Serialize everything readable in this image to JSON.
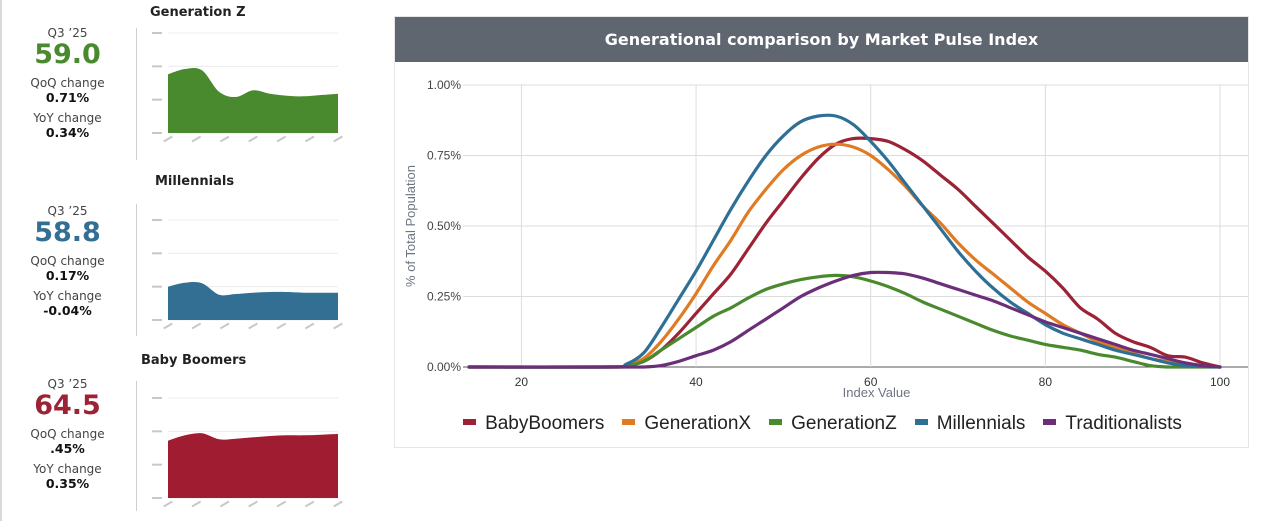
{
  "panels": [
    {
      "title": "Generation Z",
      "period": "Q3 ’25",
      "value": "59.0",
      "qoq_label": "QoQ change",
      "qoq_value": "0.71%",
      "yoy_label": "YoY change",
      "yoy_value": "0.34%",
      "color": "#4a8a2f",
      "ylim": [
        55,
        70
      ],
      "series": [
        63.8,
        64.6,
        64.4,
        61.2,
        60.4,
        61.4,
        60.9,
        60.6,
        60.5,
        60.7,
        60.9
      ]
    },
    {
      "title": "Millennials",
      "period": "Q3 ’25",
      "value": "58.8",
      "qoq_label": "QoQ change",
      "qoq_value": "0.17%",
      "yoy_label": "YoY change",
      "yoy_value": "-0.04%",
      "color": "#326f93",
      "ylim": [
        55,
        70
      ],
      "series": [
        60.0,
        60.6,
        60.5,
        58.8,
        58.9,
        59.1,
        59.2,
        59.2,
        59.1,
        59.1,
        59.1
      ]
    },
    {
      "title": "Baby Boomers",
      "period": "Q3 ’25",
      "value": "64.5",
      "qoq_label": "QoQ change",
      "qoq_value": ".45%",
      "yoy_label": "YoY change",
      "yoy_value": "0.35%",
      "color": "#a01c30",
      "ylim": [
        55,
        70
      ],
      "series": [
        63.6,
        64.4,
        64.7,
        63.8,
        63.9,
        64.1,
        64.3,
        64.4,
        64.4,
        64.5,
        64.6
      ]
    }
  ],
  "chart_data": {
    "type": "line",
    "title": "Generational comparison by Market Pulse Index",
    "xlabel": "Index Value",
    "ylabel": "% of Total Population",
    "xlim": [
      14,
      100
    ],
    "ylim": [
      0,
      1.0
    ],
    "xticks": [
      "20",
      "40",
      "60",
      "80",
      "100"
    ],
    "xtick_values": [
      20,
      40,
      60,
      80,
      100
    ],
    "yticks": [
      "0.00%",
      "0.25%",
      "0.50%",
      "0.75%",
      "1.00%"
    ],
    "ytick_values": [
      0,
      0.25,
      0.5,
      0.75,
      1.0
    ],
    "grid": true,
    "legend_position": "bottom",
    "x": [
      14,
      30,
      32,
      34,
      36,
      38,
      40,
      42,
      44,
      46,
      48,
      50,
      52,
      54,
      56,
      58,
      60,
      62,
      64,
      66,
      68,
      70,
      72,
      74,
      76,
      78,
      80,
      82,
      84,
      86,
      88,
      90,
      92,
      94,
      96,
      98,
      100
    ],
    "series": [
      {
        "name": "BabyBoomers",
        "color": "#9b2335",
        "values": [
          0,
          0,
          0.005,
          0.02,
          0.06,
          0.12,
          0.19,
          0.26,
          0.33,
          0.42,
          0.51,
          0.59,
          0.67,
          0.74,
          0.79,
          0.81,
          0.81,
          0.8,
          0.77,
          0.73,
          0.68,
          0.63,
          0.57,
          0.51,
          0.45,
          0.39,
          0.34,
          0.28,
          0.21,
          0.17,
          0.12,
          0.09,
          0.07,
          0.04,
          0.035,
          0.015,
          0
        ]
      },
      {
        "name": "GenerationX",
        "color": "#e07b24",
        "values": [
          0,
          0,
          0.005,
          0.03,
          0.09,
          0.17,
          0.26,
          0.36,
          0.45,
          0.55,
          0.63,
          0.7,
          0.75,
          0.78,
          0.79,
          0.78,
          0.75,
          0.7,
          0.64,
          0.57,
          0.51,
          0.44,
          0.38,
          0.33,
          0.28,
          0.23,
          0.19,
          0.15,
          0.12,
          0.09,
          0.07,
          0.05,
          0.03,
          0.02,
          0.01,
          0.003,
          0
        ]
      },
      {
        "name": "GenerationZ",
        "color": "#4a8a2f",
        "values": [
          0,
          0,
          0.003,
          0.02,
          0.06,
          0.1,
          0.14,
          0.18,
          0.21,
          0.245,
          0.275,
          0.295,
          0.31,
          0.32,
          0.325,
          0.32,
          0.305,
          0.285,
          0.26,
          0.23,
          0.205,
          0.18,
          0.155,
          0.13,
          0.11,
          0.095,
          0.08,
          0.07,
          0.06,
          0.045,
          0.035,
          0.02,
          0.005,
          0,
          0,
          0,
          0
        ]
      },
      {
        "name": "Millennials",
        "color": "#2e6f95",
        "values": [
          0,
          0,
          0.01,
          0.05,
          0.14,
          0.24,
          0.34,
          0.45,
          0.56,
          0.66,
          0.75,
          0.82,
          0.87,
          0.89,
          0.89,
          0.86,
          0.8,
          0.73,
          0.65,
          0.57,
          0.49,
          0.41,
          0.34,
          0.28,
          0.23,
          0.19,
          0.15,
          0.12,
          0.1,
          0.08,
          0.06,
          0.045,
          0.03,
          0.015,
          0.005,
          0.002,
          0
        ]
      },
      {
        "name": "Traditionalists",
        "color": "#6b2f7a",
        "values": [
          0,
          0,
          0,
          0,
          0.005,
          0.02,
          0.04,
          0.06,
          0.09,
          0.13,
          0.17,
          0.21,
          0.25,
          0.28,
          0.305,
          0.325,
          0.335,
          0.335,
          0.33,
          0.315,
          0.295,
          0.275,
          0.255,
          0.235,
          0.21,
          0.185,
          0.16,
          0.14,
          0.12,
          0.1,
          0.08,
          0.06,
          0.045,
          0.03,
          0.015,
          0.005,
          0
        ]
      }
    ]
  }
}
